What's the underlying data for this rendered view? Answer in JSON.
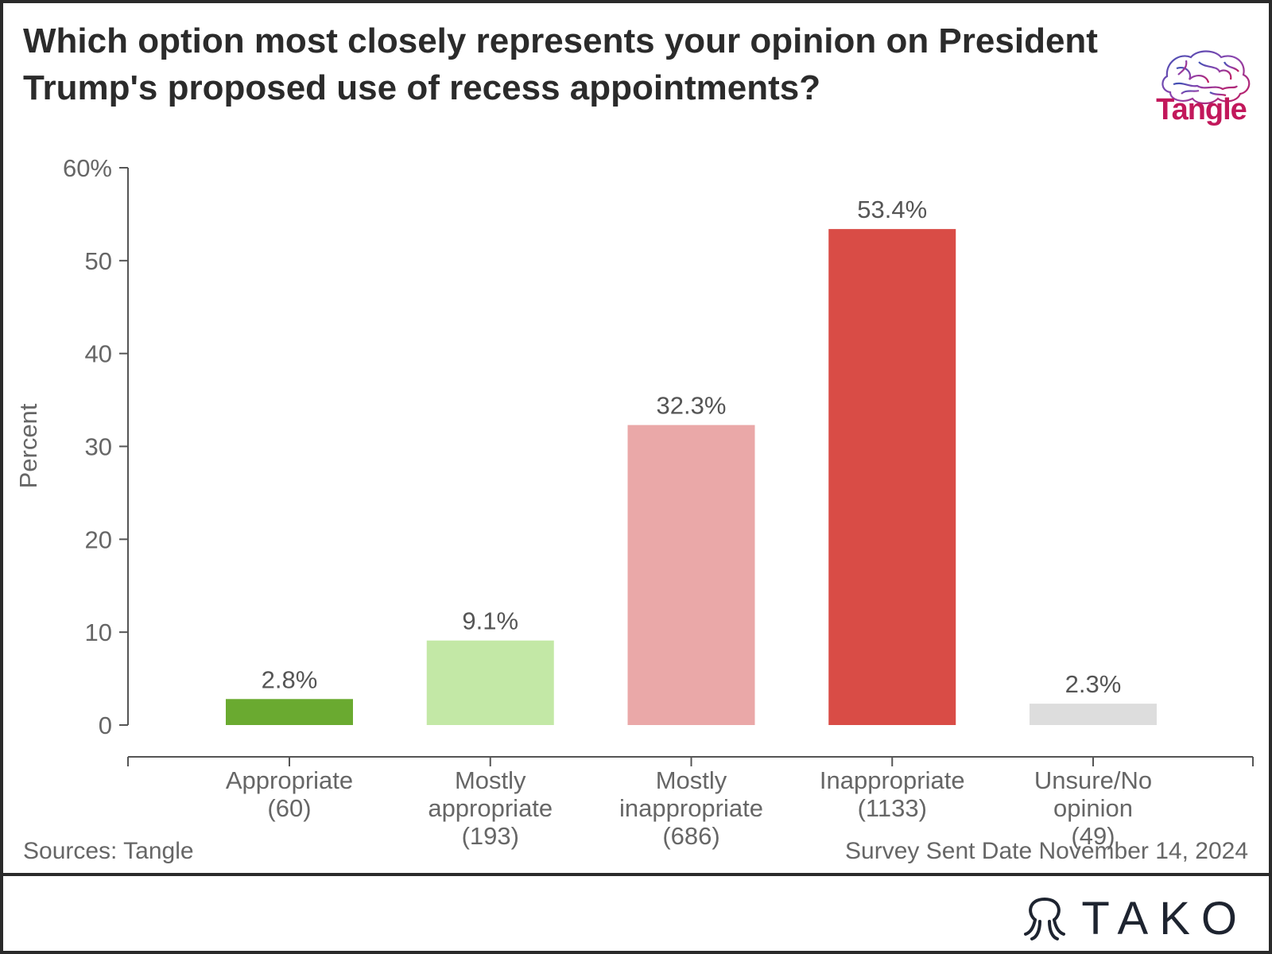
{
  "chart_data": {
    "type": "bar",
    "title": "Which option most closely represents your opinion on President Trump's proposed use of recess appointments?",
    "ylabel": "Percent",
    "ylim": [
      0,
      60
    ],
    "yticks": [
      {
        "value": 60,
        "label": "60%"
      },
      {
        "value": 50,
        "label": "50"
      },
      {
        "value": 40,
        "label": "40"
      },
      {
        "value": 30,
        "label": "30"
      },
      {
        "value": 20,
        "label": "20"
      },
      {
        "value": 10,
        "label": "10"
      },
      {
        "value": 0,
        "label": "0"
      }
    ],
    "categories": [
      {
        "lines": [
          "Appropriate",
          "(60)"
        ]
      },
      {
        "lines": [
          "Mostly",
          "appropriate",
          "(193)"
        ]
      },
      {
        "lines": [
          "Mostly",
          "inappropriate",
          "(686)"
        ]
      },
      {
        "lines": [
          "Inappropriate",
          "(1133)"
        ]
      },
      {
        "lines": [
          "Unsure/No",
          "opinion",
          "(49)"
        ]
      }
    ],
    "values": [
      2.8,
      9.1,
      32.3,
      53.4,
      2.3
    ],
    "data_labels": [
      "2.8%",
      "9.1%",
      "32.3%",
      "53.4%",
      "2.3%"
    ],
    "colors": [
      "#6aaa30",
      "#c3e8a6",
      "#eaa8a8",
      "#d94c46",
      "#dddddd"
    ],
    "grid": false,
    "legend": "none"
  },
  "brand": {
    "logo_text": "Tangle",
    "logo_colors": [
      "#c2185b",
      "#3f51b5",
      "#8e44ad"
    ]
  },
  "footer": {
    "source": "Sources: Tangle",
    "date": "Survey Sent Date November 14, 2024"
  },
  "watermark": {
    "text": "TAKO",
    "icon": "octopus-icon"
  }
}
